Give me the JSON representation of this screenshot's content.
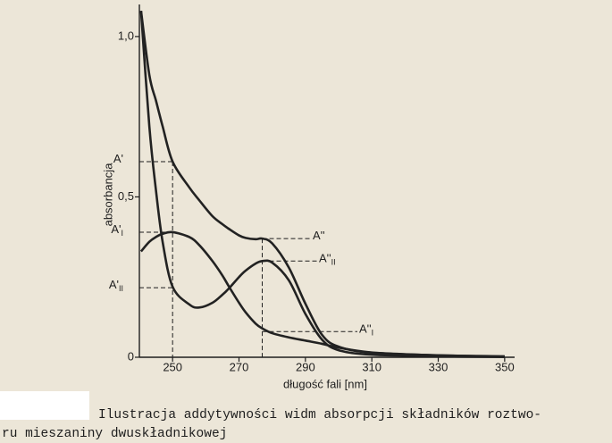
{
  "chart_data": {
    "type": "line",
    "xlabel": "długość fali [nm]",
    "ylabel": "absorbancja",
    "xlim": [
      240,
      353
    ],
    "ylim": [
      0,
      1.1
    ],
    "xticks": [
      250,
      270,
      290,
      310,
      330,
      350
    ],
    "yticks": [
      0,
      {
        "value": 0.5,
        "label": "0,5"
      },
      {
        "value": 1,
        "label": "1,0"
      }
    ],
    "x": [
      240.5,
      243,
      245,
      247,
      250,
      255,
      258,
      262,
      265,
      267,
      270,
      272,
      275,
      277,
      280,
      285,
      290,
      295,
      300,
      310,
      330,
      350
    ],
    "series": [
      {
        "color": "#222222",
        "values": [
          1.08,
          0.88,
          0.8,
          0.72,
          0.61,
          0.53,
          0.49,
          0.44,
          0.415,
          0.4,
          0.38,
          0.372,
          0.368,
          0.37,
          0.355,
          0.28,
          0.167,
          0.07,
          0.033,
          0.014,
          0.006,
          0.003
        ]
      },
      {
        "color": "#222222",
        "values": [
          0.33,
          0.36,
          0.375,
          0.385,
          0.39,
          0.375,
          0.35,
          0.3,
          0.255,
          0.22,
          0.17,
          0.14,
          0.105,
          0.09,
          0.075,
          0.062,
          0.052,
          0.042,
          0.03,
          0.015,
          0.006,
          0.002
        ]
      },
      {
        "color": "#222222",
        "values": [
          1.08,
          0.72,
          0.52,
          0.36,
          0.22,
          0.165,
          0.155,
          0.17,
          0.195,
          0.215,
          0.25,
          0.27,
          0.292,
          0.3,
          0.295,
          0.24,
          0.135,
          0.055,
          0.022,
          0.008,
          0.003,
          0.001
        ]
      }
    ],
    "x_markers": [
      250,
      277
    ],
    "left_annotations": [
      {
        "text": "A'",
        "sub": "",
        "value": 0.61
      },
      {
        "text": "A'",
        "sub": "I",
        "value": 0.39
      },
      {
        "text": "A'",
        "sub": "II",
        "value": 0.217
      }
    ],
    "right_annotations": [
      {
        "text": "A''",
        "sub": "",
        "value": 0.37
      },
      {
        "text": "A''",
        "sub": "II",
        "value": 0.3
      },
      {
        "text": "A''",
        "sub": "I",
        "value": 0.08
      }
    ]
  },
  "caption": {
    "line1": "Ilustracja addytywności widm absorpcji składników roztwo-",
    "line2": "ru mieszaniny dwuskładnikowej"
  }
}
